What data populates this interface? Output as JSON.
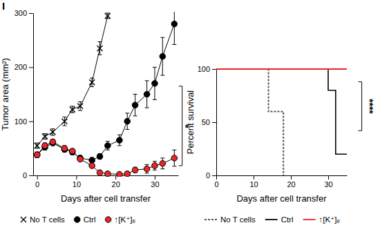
{
  "chart_data": [
    {
      "type": "line",
      "title": "I",
      "x_label": "Days after cell transfer",
      "y_label": "Tumor area (mm²)",
      "xlim": [
        -1,
        36
      ],
      "ylim": [
        0,
        300
      ],
      "xticks": [
        0,
        10,
        20,
        30
      ],
      "yticks": [
        0,
        100,
        200,
        300
      ],
      "legend": "bottom",
      "series": [
        {
          "name": "No T cells",
          "color": "#000000",
          "marker": "x",
          "x": [
            0,
            2,
            4,
            7,
            9,
            11,
            14,
            16,
            18
          ],
          "values": [
            55,
            72,
            80,
            100,
            122,
            128,
            172,
            235,
            295
          ],
          "errors": [
            5,
            5,
            6,
            8,
            6,
            8,
            8,
            12,
            5
          ]
        },
        {
          "name": "Ctrl",
          "color": "#000000",
          "marker": "circle",
          "x": [
            0,
            2,
            4,
            7,
            9,
            11,
            14,
            16,
            18,
            21,
            23,
            25,
            28,
            30,
            32,
            35
          ],
          "values": [
            38,
            52,
            60,
            48,
            43,
            32,
            28,
            35,
            55,
            65,
            100,
            130,
            150,
            170,
            220,
            280
          ],
          "errors": [
            5,
            5,
            5,
            5,
            5,
            5,
            5,
            5,
            8,
            10,
            15,
            20,
            25,
            30,
            35,
            38
          ]
        },
        {
          "name": "↑[K⁺]ₑ",
          "color": "#e8262a",
          "marker": "circle",
          "x": [
            0,
            2,
            4,
            7,
            9,
            11,
            14,
            16,
            18,
            21,
            23,
            25,
            28,
            30,
            32,
            35
          ],
          "values": [
            38,
            55,
            62,
            50,
            45,
            30,
            18,
            5,
            3,
            2,
            3,
            10,
            12,
            18,
            22,
            32
          ],
          "errors": [
            5,
            5,
            5,
            5,
            4,
            4,
            4,
            3,
            2,
            2,
            3,
            5,
            8,
            8,
            10,
            15
          ]
        }
      ],
      "annotations": [
        {
          "text": "*",
          "x": 37,
          "y_from": 18,
          "y_to": 165
        }
      ]
    },
    {
      "type": "step",
      "x_label": "Days after cell transfer",
      "y_label": "Percent survival",
      "xlim": [
        0,
        35
      ],
      "ylim": [
        0,
        100
      ],
      "xticks": [
        0,
        10,
        20,
        30
      ],
      "yticks": [
        0,
        50,
        100
      ],
      "legend": "bottom",
      "series": [
        {
          "name": "No T cells",
          "color": "#555555",
          "line_style": "dashed",
          "x": [
            0,
            14,
            18
          ],
          "values": [
            100,
            60,
            0
          ]
        },
        {
          "name": "Ctrl",
          "color": "#000000",
          "line_style": "solid",
          "x": [
            0,
            30,
            32,
            35
          ],
          "values": [
            100,
            80,
            20,
            20
          ]
        },
        {
          "name": "↑[K⁺]ₑ",
          "color": "#e8262a",
          "line_style": "solid",
          "x": [
            0,
            35
          ],
          "values": [
            100,
            100
          ]
        }
      ],
      "annotations": [
        {
          "text": "****",
          "x": 39,
          "y_from": 42,
          "y_to": 88
        }
      ]
    }
  ]
}
